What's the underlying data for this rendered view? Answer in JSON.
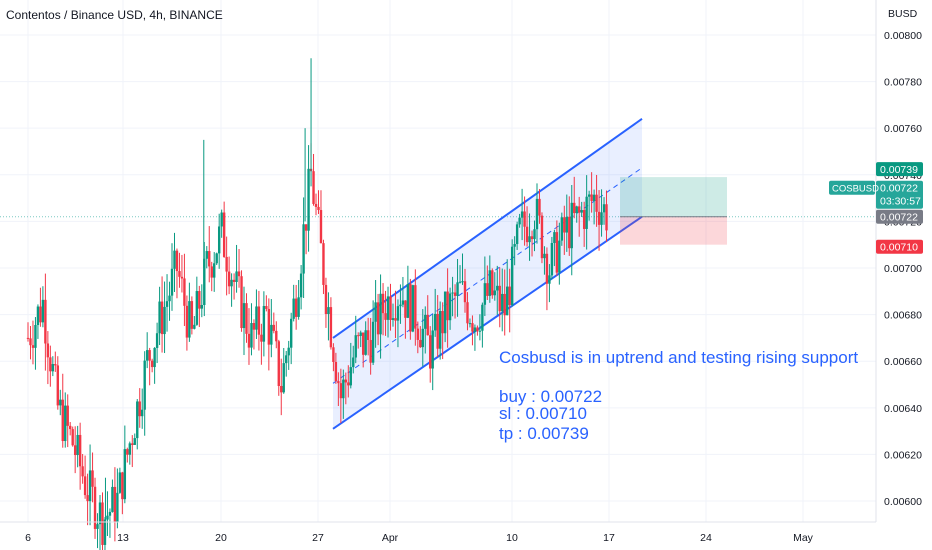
{
  "header": {
    "title": "Contentos / Binance USD, 4h, BINANCE"
  },
  "price_axis": {
    "currency": "BUSD",
    "ticks": [
      "0.00800",
      "0.00780",
      "0.00760",
      "0.00740",
      "0.00720",
      "0.00700",
      "0.00680",
      "0.00660",
      "0.00640",
      "0.00620",
      "0.00600"
    ]
  },
  "time_axis": {
    "ticks": [
      "6",
      "13",
      "20",
      "27",
      "Apr",
      "10",
      "17",
      "24",
      "May"
    ]
  },
  "annotation": {
    "lines": [
      "Cosbusd is in uptrend and testing rising support",
      "",
      "buy : 0.00722",
      "sl : 0.00710",
      "tp : 0.00739"
    ]
  },
  "price_tags": {
    "tp": {
      "label": "0.00739",
      "color": "#089981"
    },
    "symbol": {
      "label": "COSBUSD",
      "color": "#26a69a"
    },
    "last": {
      "label": "0.00722",
      "countdown": "03:30:57",
      "color": "#26a69a"
    },
    "entry": {
      "label": "0.00722",
      "color": "#787b86"
    },
    "sl": {
      "label": "0.00710",
      "color": "#f23645"
    }
  },
  "colors": {
    "up": "#089981",
    "down": "#f23645",
    "channel": "#2962ff",
    "channel_fill": "#2962ff",
    "grid": "#f0f3fa"
  },
  "chart_data": {
    "type": "candlestick",
    "title": "Contentos / Binance USD, 4h, BINANCE",
    "ylabel": "BUSD",
    "ylim": [
      0.00591,
      0.00815
    ],
    "x_ticks": [
      "6",
      "13",
      "20",
      "27",
      "Apr",
      "10",
      "17",
      "24",
      "May"
    ],
    "trade": {
      "buy": 0.00722,
      "sl": 0.0071,
      "tp": 0.00739
    },
    "channel": {
      "upper": [
        [
          "27",
          0.0067
        ],
        [
          "17",
          0.00764
        ]
      ],
      "lower": [
        [
          "27",
          0.00631
        ],
        [
          "17",
          0.00722
        ]
      ]
    },
    "price_path_close": [
      [
        6,
        0.0067
      ],
      [
        7,
        0.00685
      ],
      [
        8,
        0.0064
      ],
      [
        9,
        0.00625
      ],
      [
        10,
        0.00605
      ],
      [
        11,
        0.00592
      ],
      [
        12,
        0.006
      ],
      [
        13,
        0.0063
      ],
      [
        14,
        0.0066
      ],
      [
        15,
        0.0068
      ],
      [
        16,
        0.007
      ],
      [
        17,
        0.0067
      ],
      [
        18,
        0.007
      ],
      [
        19,
        0.00715
      ],
      [
        20,
        0.0069
      ],
      [
        21,
        0.0067
      ],
      [
        22,
        0.0068
      ],
      [
        23,
        0.0065
      ],
      [
        24,
        0.0069
      ],
      [
        25,
        0.0074
      ],
      [
        26,
        0.0069
      ],
      [
        27,
        0.00645
      ],
      [
        28,
        0.00665
      ],
      [
        29,
        0.0067
      ],
      [
        30,
        0.00685
      ],
      [
        31,
        0.0069
      ],
      [
        32,
        0.0068
      ],
      [
        33,
        0.00665
      ],
      [
        34,
        0.0068
      ],
      [
        35,
        0.0069
      ],
      [
        36,
        0.00678
      ],
      [
        37,
        0.0069
      ],
      [
        38,
        0.00682
      ],
      [
        39,
        0.00715
      ],
      [
        40,
        0.00725
      ],
      [
        41,
        0.007
      ],
      [
        42,
        0.00715
      ],
      [
        43,
        0.00722
      ],
      [
        44,
        0.0073
      ],
      [
        45,
        0.00722
      ]
    ]
  }
}
